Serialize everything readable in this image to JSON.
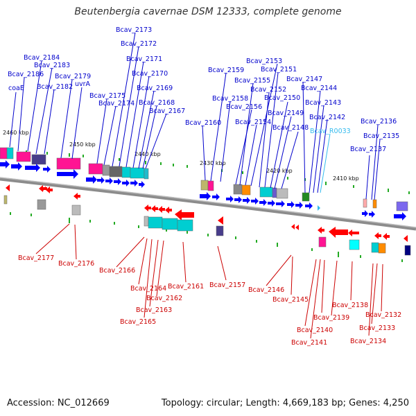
{
  "title": "Beutenbergia cavernae DSM 12333, complete genome",
  "footer": {
    "accession": "Accession: NC_012669",
    "topology": "Topology: circular; Length: 4,669,183 bp; Genes: 4,250"
  },
  "colors": {
    "forward_label": "#0000cc",
    "reverse_label": "#cc0000",
    "rna_label": "#33bbee",
    "backbone": "#888888"
  },
  "scale_labels": [
    {
      "id": "kbp-2460",
      "text": "2460 kbp"
    },
    {
      "id": "kbp-2450",
      "text": "2450 kbp"
    },
    {
      "id": "kbp-2440",
      "text": "2440 kbp"
    },
    {
      "id": "kbp-2430",
      "text": "2430 kbp"
    },
    {
      "id": "kbp-2420",
      "text": "2420 kbp"
    },
    {
      "id": "kbp-2410",
      "text": "2410 kbp"
    }
  ],
  "forward_genes": [
    "coaE",
    "Bcav_2186",
    "Bcav_2184",
    "Bcav_2183",
    "Bcav_2182",
    "Bcav_2179",
    "uvrA",
    "Bcav_2175",
    "Bcav_2174",
    "Bcav_2173",
    "Bcav_2172",
    "Bcav_2171",
    "Bcav_2170",
    "Bcav_2169",
    "Bcav_2168",
    "Bcav_2167",
    "Bcav_2160",
    "Bcav_2159",
    "Bcav_2158",
    "Bcav_2156",
    "Bcav_2155",
    "Bcav_2154",
    "Bcav_2153",
    "Bcav_2152",
    "Bcav_2151",
    "Bcav_2150",
    "Bcav_2149",
    "Bcav_2148",
    "Bcav_2147",
    "Bcav_2144",
    "Bcav_2143",
    "Bcav_2142",
    "Bcav_R0033",
    "Bcav_2137",
    "Bcav_2136",
    "Bcav_2135"
  ],
  "reverse_genes": [
    "Bcav_2177",
    "Bcav_2176",
    "Bcav_2166",
    "Bcav_2164",
    "Bcav_2161",
    "Bcav_2162",
    "Bcav_2163",
    "Bcav_2165",
    "Bcav_2157",
    "Bcav_2146",
    "Bcav_2145",
    "Bcav_2138",
    "Bcav_2139",
    "Bcav_2140",
    "Bcav_2141",
    "Bcav_2132",
    "Bcav_2133",
    "Bcav_2134"
  ]
}
